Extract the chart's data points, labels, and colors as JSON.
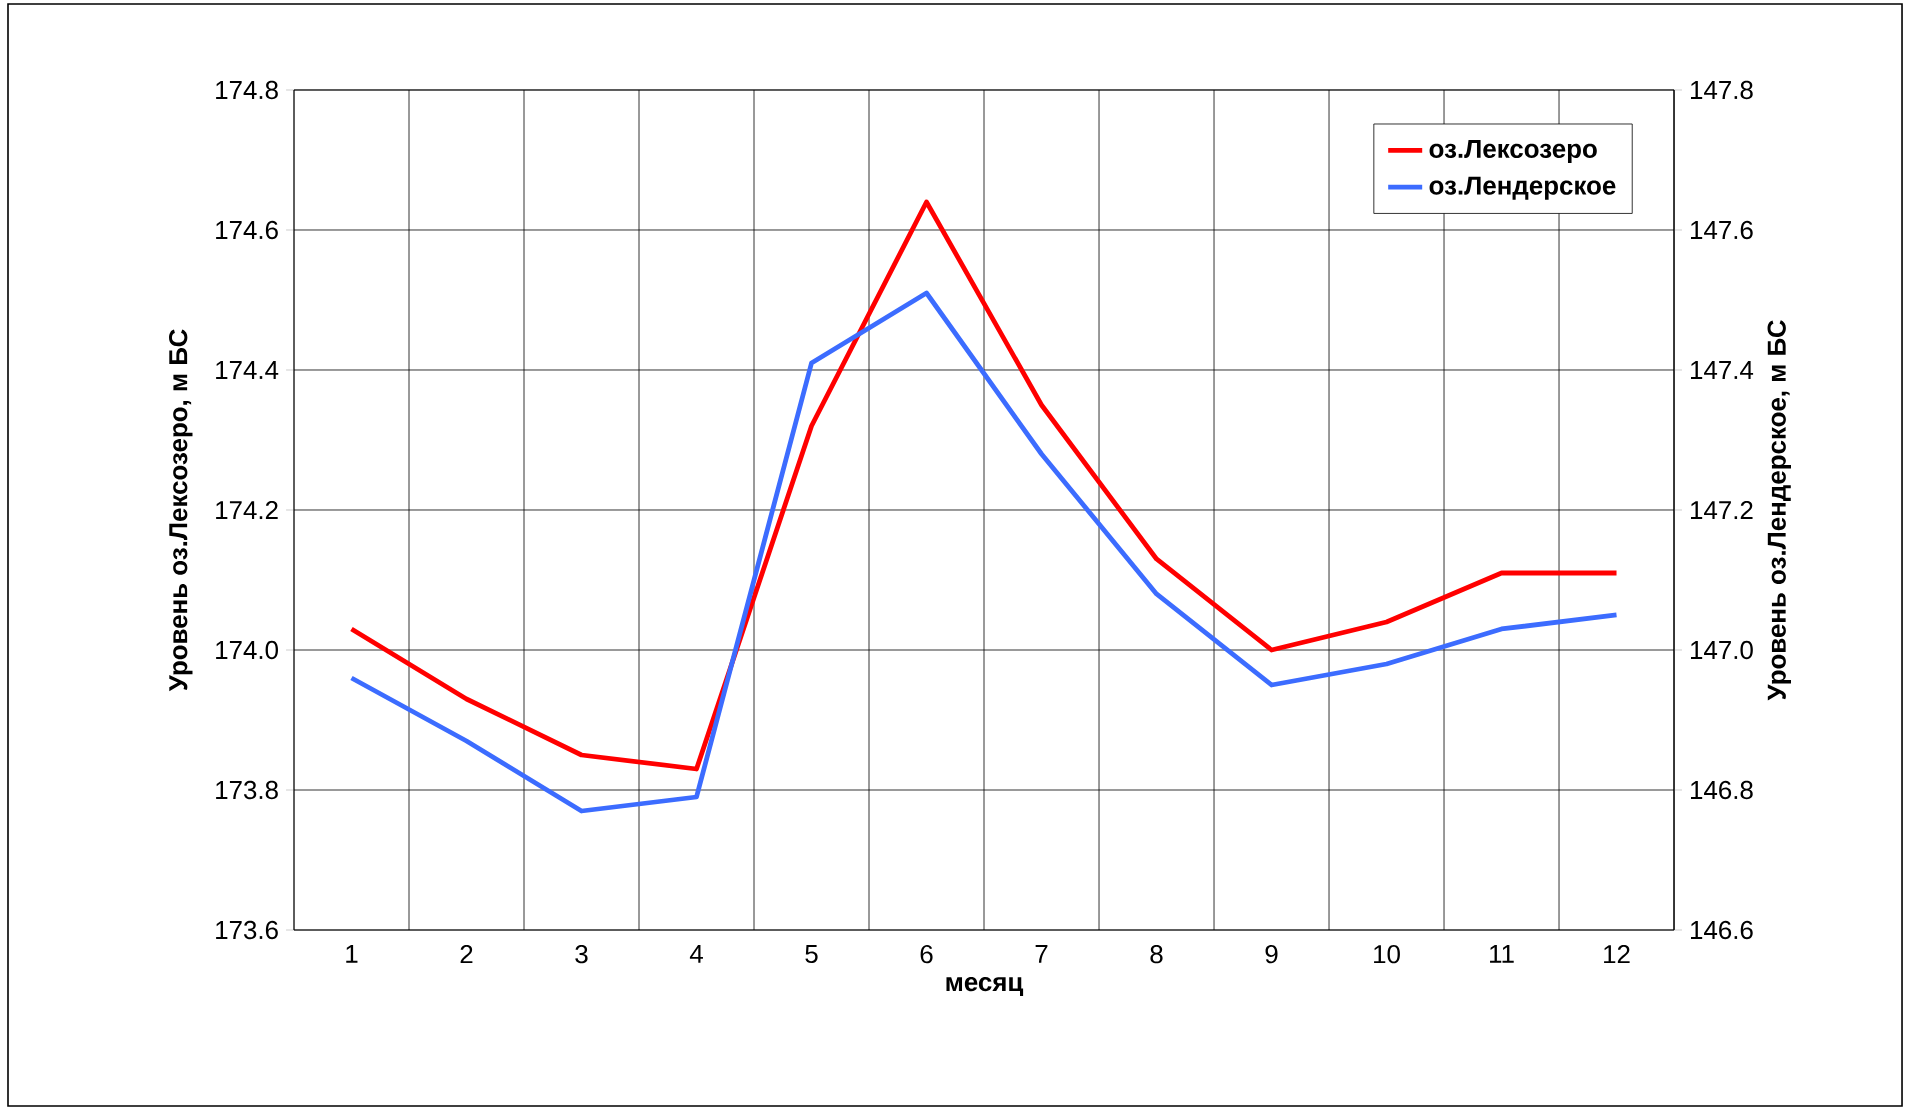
{
  "chart_data": {
    "type": "line",
    "categories": [
      "1",
      "2",
      "3",
      "4",
      "5",
      "6",
      "7",
      "8",
      "9",
      "10",
      "11",
      "12"
    ],
    "series": [
      {
        "name": "оз.Лексозеро",
        "color": "#ff0000",
        "axis": "y",
        "values": [
          174.03,
          173.93,
          173.85,
          173.83,
          174.32,
          174.64,
          174.35,
          174.13,
          174.0,
          174.04,
          174.11,
          174.11
        ]
      },
      {
        "name": "оз.Лендерское",
        "color": "#3c6cff",
        "axis": "y2",
        "values": [
          146.96,
          146.87,
          146.77,
          146.79,
          147.41,
          147.51,
          147.28,
          147.08,
          146.95,
          146.98,
          147.03,
          147.05
        ]
      }
    ],
    "xlabel": "месяц",
    "ylabel": "Уровень оз.Лексозеро, м БС",
    "y2label": "Уровень оз.Лендерское, м БС",
    "ylim": [
      173.6,
      174.8
    ],
    "yticks": [
      {
        "value": 173.6,
        "label": "173.6"
      },
      {
        "value": 173.8,
        "label": "173.8"
      },
      {
        "value": 174.0,
        "label": "174.0"
      },
      {
        "value": 174.2,
        "label": "174.2"
      },
      {
        "value": 174.4,
        "label": "174.4"
      },
      {
        "value": 174.6,
        "label": "174.6"
      },
      {
        "value": 174.8,
        "label": "174.8"
      }
    ],
    "y2lim": [
      146.6,
      147.8
    ],
    "y2ticks": [
      {
        "value": 146.6,
        "label": "146.6"
      },
      {
        "value": 146.8,
        "label": "146.8"
      },
      {
        "value": 147.0,
        "label": "147.0"
      },
      {
        "value": 147.2,
        "label": "147.2"
      },
      {
        "value": 147.4,
        "label": "147.4"
      },
      {
        "value": 147.6,
        "label": "147.6"
      },
      {
        "value": 147.8,
        "label": "147.8"
      }
    ],
    "grid": true,
    "legend": "top right"
  }
}
